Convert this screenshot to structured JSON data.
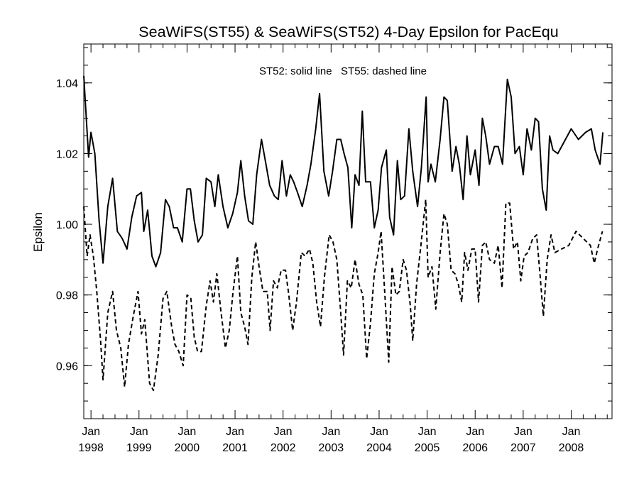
{
  "chart_data": {
    "type": "line",
    "title": "SeaWiFS(ST55) & SeaWiFS(ST52) 4-Day Epsilon for PacEqu",
    "subtitle": "ST52: solid line   ST55: dashed line",
    "xlabel": "",
    "ylabel": "Epsilon",
    "xlim": [
      1997.85,
      2008.85
    ],
    "ylim": [
      0.945,
      1.051
    ],
    "yticks": [
      0.96,
      0.98,
      1.0,
      1.02,
      1.04
    ],
    "ytick_labels": [
      "0.96",
      "0.98",
      "1.00",
      "1.02",
      "1.04"
    ],
    "xticks": [
      {
        "value": 1998,
        "month": "Jan",
        "year": "1998"
      },
      {
        "value": 1999,
        "month": "Jan",
        "year": "1999"
      },
      {
        "value": 2000,
        "month": "Jan",
        "year": "2000"
      },
      {
        "value": 2001,
        "month": "Jan",
        "year": "2001"
      },
      {
        "value": 2002,
        "month": "Jan",
        "year": "2002"
      },
      {
        "value": 2003,
        "month": "Jan",
        "year": "2003"
      },
      {
        "value": 2004,
        "month": "Jan",
        "year": "2004"
      },
      {
        "value": 2005,
        "month": "Jan",
        "year": "2005"
      },
      {
        "value": 2006,
        "month": "Jan",
        "year": "2006"
      },
      {
        "value": 2007,
        "month": "Jan",
        "year": "2007"
      },
      {
        "value": 2008,
        "month": "Jan",
        "year": "2008"
      }
    ],
    "grid": false,
    "series": [
      {
        "name": "ST52",
        "style": "solid",
        "color": "#000000",
        "points": [
          [
            1997.85,
            1.042
          ],
          [
            1997.95,
            1.019
          ],
          [
            1998.0,
            1.026
          ],
          [
            1998.08,
            1.02
          ],
          [
            1998.17,
            1.001
          ],
          [
            1998.25,
            0.989
          ],
          [
            1998.35,
            1.005
          ],
          [
            1998.45,
            1.013
          ],
          [
            1998.55,
            0.998
          ],
          [
            1998.65,
            0.996
          ],
          [
            1998.75,
            0.993
          ],
          [
            1998.85,
            1.002
          ],
          [
            1998.95,
            1.008
          ],
          [
            1999.05,
            1.009
          ],
          [
            1999.1,
            0.998
          ],
          [
            1999.18,
            1.004
          ],
          [
            1999.27,
            0.991
          ],
          [
            1999.35,
            0.988
          ],
          [
            1999.45,
            0.992
          ],
          [
            1999.55,
            1.007
          ],
          [
            1999.63,
            1.005
          ],
          [
            1999.72,
            0.999
          ],
          [
            1999.8,
            0.999
          ],
          [
            1999.9,
            0.995
          ],
          [
            2000.0,
            1.01
          ],
          [
            2000.07,
            1.01
          ],
          [
            2000.15,
            1.001
          ],
          [
            2000.23,
            0.995
          ],
          [
            2000.32,
            0.997
          ],
          [
            2000.4,
            1.013
          ],
          [
            2000.5,
            1.012
          ],
          [
            2000.58,
            1.005
          ],
          [
            2000.65,
            1.014
          ],
          [
            2000.75,
            1.005
          ],
          [
            2000.85,
            0.999
          ],
          [
            2000.95,
            1.003
          ],
          [
            2001.05,
            1.009
          ],
          [
            2001.12,
            1.018
          ],
          [
            2001.2,
            1.008
          ],
          [
            2001.28,
            1.001
          ],
          [
            2001.37,
            1.0
          ],
          [
            2001.45,
            1.014
          ],
          [
            2001.55,
            1.024
          ],
          [
            2001.63,
            1.018
          ],
          [
            2001.72,
            1.011
          ],
          [
            2001.82,
            1.008
          ],
          [
            2001.9,
            1.007
          ],
          [
            2001.98,
            1.018
          ],
          [
            2002.07,
            1.008
          ],
          [
            2002.15,
            1.014
          ],
          [
            2002.22,
            1.012
          ],
          [
            2002.3,
            1.009
          ],
          [
            2002.4,
            1.005
          ],
          [
            2002.5,
            1.011
          ],
          [
            2002.58,
            1.017
          ],
          [
            2002.68,
            1.027
          ],
          [
            2002.76,
            1.037
          ],
          [
            2002.85,
            1.015
          ],
          [
            2002.95,
            1.008
          ],
          [
            2003.03,
            1.015
          ],
          [
            2003.12,
            1.024
          ],
          [
            2003.2,
            1.024
          ],
          [
            2003.27,
            1.02
          ],
          [
            2003.35,
            1.016
          ],
          [
            2003.43,
            0.999
          ],
          [
            2003.5,
            1.014
          ],
          [
            2003.58,
            1.011
          ],
          [
            2003.65,
            1.032
          ],
          [
            2003.72,
            1.012
          ],
          [
            2003.82,
            1.012
          ],
          [
            2003.9,
            0.999
          ],
          [
            2003.98,
            1.004
          ],
          [
            2004.05,
            1.016
          ],
          [
            2004.15,
            1.021
          ],
          [
            2004.22,
            1.002
          ],
          [
            2004.3,
            0.997
          ],
          [
            2004.38,
            1.018
          ],
          [
            2004.45,
            1.007
          ],
          [
            2004.53,
            1.008
          ],
          [
            2004.62,
            1.027
          ],
          [
            2004.7,
            1.015
          ],
          [
            2004.8,
            1.005
          ],
          [
            2004.88,
            1.016
          ],
          [
            2004.98,
            1.036
          ],
          [
            2005.02,
            1.012
          ],
          [
            2005.08,
            1.017
          ],
          [
            2005.17,
            1.012
          ],
          [
            2005.27,
            1.024
          ],
          [
            2005.35,
            1.036
          ],
          [
            2005.42,
            1.035
          ],
          [
            2005.52,
            1.015
          ],
          [
            2005.6,
            1.022
          ],
          [
            2005.67,
            1.017
          ],
          [
            2005.75,
            1.007
          ],
          [
            2005.83,
            1.025
          ],
          [
            2005.9,
            1.014
          ],
          [
            2006.0,
            1.021
          ],
          [
            2006.08,
            1.011
          ],
          [
            2006.15,
            1.03
          ],
          [
            2006.22,
            1.025
          ],
          [
            2006.3,
            1.017
          ],
          [
            2006.4,
            1.022
          ],
          [
            2006.48,
            1.022
          ],
          [
            2006.57,
            1.017
          ],
          [
            2006.67,
            1.041
          ],
          [
            2006.75,
            1.036
          ],
          [
            2006.83,
            1.02
          ],
          [
            2006.92,
            1.022
          ],
          [
            2007.0,
            1.014
          ],
          [
            2007.08,
            1.027
          ],
          [
            2007.17,
            1.021
          ],
          [
            2007.25,
            1.03
          ],
          [
            2007.32,
            1.029
          ],
          [
            2007.4,
            1.01
          ],
          [
            2007.48,
            1.004
          ],
          [
            2007.55,
            1.025
          ],
          [
            2007.62,
            1.021
          ],
          [
            2007.72,
            1.02
          ],
          [
            2007.8,
            1.022
          ],
          [
            2008.0,
            1.027
          ],
          [
            2008.15,
            1.024
          ],
          [
            2008.3,
            1.026
          ],
          [
            2008.42,
            1.027
          ],
          [
            2008.5,
            1.021
          ],
          [
            2008.6,
            1.017
          ],
          [
            2008.66,
            1.026
          ]
        ]
      },
      {
        "name": "ST55",
        "style": "dashed",
        "color": "#000000",
        "points": [
          [
            1997.85,
            1.005
          ],
          [
            1997.92,
            0.991
          ],
          [
            1997.98,
            0.997
          ],
          [
            1998.05,
            0.991
          ],
          [
            1998.12,
            0.981
          ],
          [
            1998.2,
            0.967
          ],
          [
            1998.25,
            0.956
          ],
          [
            1998.35,
            0.975
          ],
          [
            1998.45,
            0.981
          ],
          [
            1998.53,
            0.97
          ],
          [
            1998.62,
            0.965
          ],
          [
            1998.7,
            0.954
          ],
          [
            1998.78,
            0.966
          ],
          [
            1998.88,
            0.974
          ],
          [
            1998.98,
            0.981
          ],
          [
            1999.05,
            0.969
          ],
          [
            1999.12,
            0.973
          ],
          [
            1999.22,
            0.955
          ],
          [
            1999.3,
            0.953
          ],
          [
            1999.4,
            0.963
          ],
          [
            1999.5,
            0.979
          ],
          [
            1999.58,
            0.981
          ],
          [
            1999.68,
            0.971
          ],
          [
            1999.75,
            0.966
          ],
          [
            1999.83,
            0.964
          ],
          [
            1999.92,
            0.96
          ],
          [
            2000.0,
            0.98
          ],
          [
            2000.08,
            0.979
          ],
          [
            2000.15,
            0.968
          ],
          [
            2000.22,
            0.964
          ],
          [
            2000.3,
            0.964
          ],
          [
            2000.4,
            0.977
          ],
          [
            2000.48,
            0.984
          ],
          [
            2000.55,
            0.978
          ],
          [
            2000.62,
            0.986
          ],
          [
            2000.7,
            0.976
          ],
          [
            2000.8,
            0.965
          ],
          [
            2000.88,
            0.97
          ],
          [
            2000.96,
            0.981
          ],
          [
            2001.05,
            0.991
          ],
          [
            2001.12,
            0.975
          ],
          [
            2001.2,
            0.971
          ],
          [
            2001.27,
            0.966
          ],
          [
            2001.35,
            0.985
          ],
          [
            2001.43,
            0.995
          ],
          [
            2001.5,
            0.988
          ],
          [
            2001.58,
            0.981
          ],
          [
            2001.67,
            0.981
          ],
          [
            2001.73,
            0.97
          ],
          [
            2001.8,
            0.984
          ],
          [
            2001.88,
            0.982
          ],
          [
            2001.96,
            0.987
          ],
          [
            2002.05,
            0.987
          ],
          [
            2002.12,
            0.98
          ],
          [
            2002.2,
            0.97
          ],
          [
            2002.28,
            0.978
          ],
          [
            2002.38,
            0.992
          ],
          [
            2002.46,
            0.991
          ],
          [
            2002.55,
            0.993
          ],
          [
            2002.62,
            0.989
          ],
          [
            2002.7,
            0.978
          ],
          [
            2002.78,
            0.971
          ],
          [
            2002.86,
            0.985
          ],
          [
            2002.96,
            0.997
          ],
          [
            2003.04,
            0.995
          ],
          [
            2003.12,
            0.99
          ],
          [
            2003.2,
            0.975
          ],
          [
            2003.26,
            0.963
          ],
          [
            2003.34,
            0.984
          ],
          [
            2003.42,
            0.982
          ],
          [
            2003.5,
            0.99
          ],
          [
            2003.58,
            0.983
          ],
          [
            2003.66,
            0.98
          ],
          [
            2003.74,
            0.962
          ],
          [
            2003.82,
            0.972
          ],
          [
            2003.9,
            0.986
          ],
          [
            2003.98,
            0.992
          ],
          [
            2004.04,
            0.998
          ],
          [
            2004.12,
            0.98
          ],
          [
            2004.2,
            0.961
          ],
          [
            2004.27,
            0.988
          ],
          [
            2004.35,
            0.98
          ],
          [
            2004.42,
            0.981
          ],
          [
            2004.5,
            0.99
          ],
          [
            2004.57,
            0.987
          ],
          [
            2004.65,
            0.977
          ],
          [
            2004.7,
            0.967
          ],
          [
            2004.78,
            0.983
          ],
          [
            2004.87,
            0.994
          ],
          [
            2004.97,
            1.007
          ],
          [
            2005.02,
            0.985
          ],
          [
            2005.1,
            0.988
          ],
          [
            2005.18,
            0.976
          ],
          [
            2005.27,
            0.992
          ],
          [
            2005.35,
            1.003
          ],
          [
            2005.42,
            1.0
          ],
          [
            2005.5,
            0.987
          ],
          [
            2005.58,
            0.986
          ],
          [
            2005.65,
            0.983
          ],
          [
            2005.72,
            0.978
          ],
          [
            2005.78,
            0.992
          ],
          [
            2005.85,
            0.987
          ],
          [
            2005.93,
            0.993
          ],
          [
            2006.0,
            0.993
          ],
          [
            2006.07,
            0.978
          ],
          [
            2006.15,
            0.994
          ],
          [
            2006.22,
            0.995
          ],
          [
            2006.3,
            0.99
          ],
          [
            2006.4,
            0.989
          ],
          [
            2006.48,
            0.994
          ],
          [
            2006.56,
            0.982
          ],
          [
            2006.64,
            1.006
          ],
          [
            2006.72,
            1.006
          ],
          [
            2006.8,
            0.993
          ],
          [
            2006.88,
            0.995
          ],
          [
            2006.95,
            0.984
          ],
          [
            2007.02,
            0.991
          ],
          [
            2007.1,
            0.992
          ],
          [
            2007.2,
            0.996
          ],
          [
            2007.28,
            0.997
          ],
          [
            2007.35,
            0.986
          ],
          [
            2007.42,
            0.974
          ],
          [
            2007.5,
            0.99
          ],
          [
            2007.58,
            0.997
          ],
          [
            2007.66,
            0.992
          ],
          [
            2007.8,
            0.993
          ],
          [
            2007.95,
            0.994
          ],
          [
            2008.1,
            0.998
          ],
          [
            2008.25,
            0.996
          ],
          [
            2008.4,
            0.994
          ],
          [
            2008.48,
            0.989
          ],
          [
            2008.55,
            0.993
          ],
          [
            2008.65,
            0.998
          ]
        ]
      }
    ]
  }
}
